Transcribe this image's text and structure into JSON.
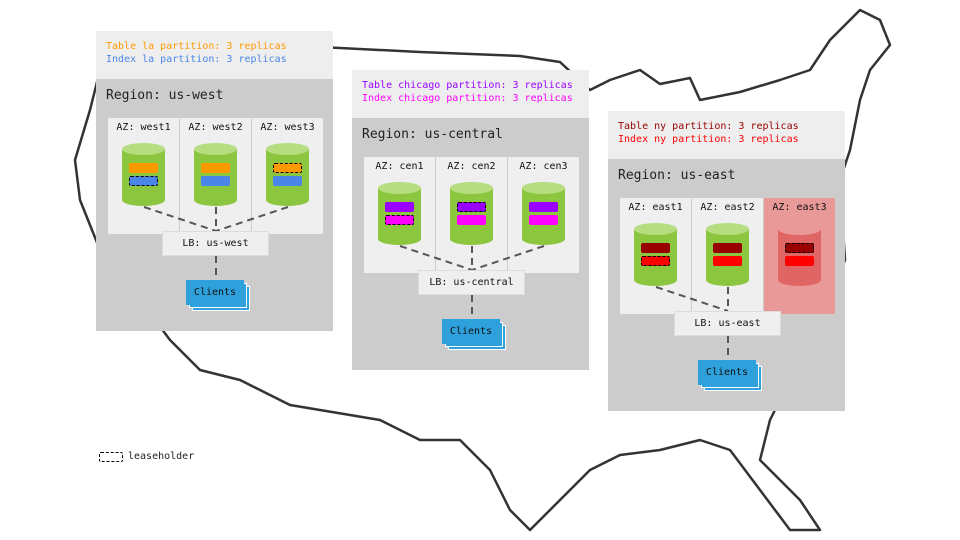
{
  "regions": [
    {
      "name": "Region: us-west",
      "lines": [
        {
          "text": "Table la partition: 3 replicas",
          "color": "#ff9900"
        },
        {
          "text": "Index la partition: 3 replicas",
          "color": "#4a86e8"
        }
      ],
      "table_color": "#ff9900",
      "index_color": "#4a86e8",
      "azs": [
        {
          "label": "AZ: west1",
          "leaseholder": "index",
          "failed": false
        },
        {
          "label": "AZ: west2",
          "leaseholder": "none",
          "failed": false
        },
        {
          "label": "AZ: west3",
          "leaseholder": "table",
          "failed": false
        }
      ],
      "lb": "LB: us-west",
      "clients": "Clients"
    },
    {
      "name": "Region: us-central",
      "lines": [
        {
          "text": "Table chicago partition: 3 replicas",
          "color": "#9900ff"
        },
        {
          "text": "Index chicago partition: 3 replicas",
          "color": "#ff00ff"
        }
      ],
      "table_color": "#9900ff",
      "index_color": "#ff00ff",
      "azs": [
        {
          "label": "AZ: cen1",
          "leaseholder": "index",
          "failed": false
        },
        {
          "label": "AZ: cen2",
          "leaseholder": "table",
          "failed": false
        },
        {
          "label": "AZ: cen3",
          "leaseholder": "none",
          "failed": false
        }
      ],
      "lb": "LB: us-central",
      "clients": "Clients"
    },
    {
      "name": "Region: us-east",
      "lines": [
        {
          "text": "Table ny partition: 3 replicas",
          "color": "#990000"
        },
        {
          "text": "Index ny partition: 3 replicas",
          "color": "#ff0000"
        }
      ],
      "table_color": "#990000",
      "index_color": "#ff0000",
      "azs": [
        {
          "label": "AZ: east1",
          "leaseholder": "index",
          "failed": false
        },
        {
          "label": "AZ: east2",
          "leaseholder": "none",
          "failed": false
        },
        {
          "label": "AZ: east3",
          "leaseholder": "table",
          "failed": true
        }
      ],
      "lb": "LB: us-east",
      "clients": "Clients"
    }
  ],
  "legend": {
    "label": "leaseholder"
  },
  "colors": {
    "cylinder": "#8cc63f",
    "cylinder_top": "#b6dd80",
    "failed_cylinder": "#e06666",
    "clients": "#2ea1dc"
  }
}
